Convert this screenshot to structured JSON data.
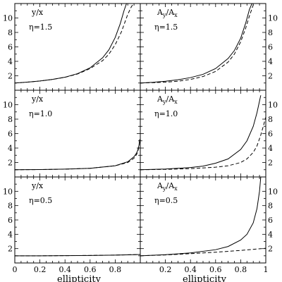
{
  "chart_data": [
    {
      "type": "line",
      "id": "top-left",
      "panel_label": "y/x",
      "eta_label": "η=1.5",
      "xlim": [
        0,
        1
      ],
      "ylim": [
        0,
        12
      ],
      "yticks_shown": [
        "2",
        "4",
        "6",
        "8",
        "10"
      ],
      "xticks_shown": [],
      "xlabel": "",
      "series": [
        {
          "style": "solid",
          "x": [
            0,
            0.1,
            0.2,
            0.3,
            0.4,
            0.5,
            0.6,
            0.7,
            0.75,
            0.8,
            0.84,
            0.87,
            0.89,
            0.9
          ],
          "y": [
            1.0,
            1.12,
            1.28,
            1.5,
            1.8,
            2.3,
            3.1,
            4.5,
            5.6,
            7.3,
            9.2,
            11.0,
            12.0,
            12.0
          ]
        },
        {
          "style": "dashed",
          "x": [
            0,
            0.1,
            0.2,
            0.3,
            0.4,
            0.5,
            0.6,
            0.7,
            0.75,
            0.8,
            0.85,
            0.9,
            0.93,
            0.95
          ],
          "y": [
            1.0,
            1.12,
            1.28,
            1.5,
            1.8,
            2.25,
            3.0,
            4.1,
            5.0,
            6.3,
            8.1,
            10.5,
            11.6,
            12.0
          ]
        }
      ]
    },
    {
      "type": "line",
      "id": "top-right",
      "panel_label": "Ay/Ax",
      "eta_label": "η=1.5",
      "xlim": [
        0,
        1
      ],
      "ylim": [
        0,
        12
      ],
      "yticks_shown": [
        "2",
        "4",
        "6",
        "8",
        "10"
      ],
      "xticks_shown": [],
      "xlabel": "",
      "series": [
        {
          "style": "solid",
          "x": [
            0,
            0.1,
            0.2,
            0.3,
            0.4,
            0.5,
            0.6,
            0.7,
            0.75,
            0.8,
            0.84,
            0.87,
            0.89,
            0.9
          ],
          "y": [
            1.0,
            1.1,
            1.25,
            1.45,
            1.75,
            2.2,
            3.0,
            4.4,
            5.5,
            7.2,
            9.3,
            11.2,
            12.0,
            12.0
          ]
        },
        {
          "style": "dashed",
          "x": [
            0,
            0.1,
            0.2,
            0.3,
            0.4,
            0.5,
            0.6,
            0.7,
            0.75,
            0.8,
            0.84,
            0.87,
            0.9,
            0.92
          ],
          "y": [
            1.0,
            1.05,
            1.12,
            1.25,
            1.5,
            1.9,
            2.6,
            3.9,
            5.0,
            6.7,
            8.6,
            10.3,
            11.8,
            12.0
          ]
        }
      ]
    },
    {
      "type": "line",
      "id": "middle-left",
      "panel_label": "y/x",
      "eta_label": "η=1.0",
      "xlim": [
        0,
        1
      ],
      "ylim": [
        0,
        12
      ],
      "yticks_shown": [
        "2",
        "4",
        "6",
        "8",
        "10"
      ],
      "xticks_shown": [],
      "xlabel": "",
      "series": [
        {
          "style": "solid",
          "x": [
            0,
            0.2,
            0.4,
            0.6,
            0.8,
            0.9,
            0.95,
            0.97,
            0.98,
            0.99,
            0.995
          ],
          "y": [
            1.0,
            1.02,
            1.08,
            1.2,
            1.55,
            2.1,
            2.8,
            3.3,
            3.7,
            4.4,
            5.2
          ]
        },
        {
          "style": "dashed",
          "x": [
            0,
            0.2,
            0.4,
            0.6,
            0.8,
            0.9,
            0.95,
            0.97,
            0.98,
            0.99,
            0.995
          ],
          "y": [
            1.0,
            1.02,
            1.08,
            1.2,
            1.55,
            2.0,
            2.6,
            3.1,
            3.5,
            4.2,
            5.0
          ]
        }
      ]
    },
    {
      "type": "line",
      "id": "middle-right",
      "panel_label": "Ay/Ax",
      "eta_label": "η=1.0",
      "xlim": [
        0,
        1
      ],
      "ylim": [
        0,
        12
      ],
      "yticks_shown": [
        "2",
        "4",
        "6",
        "8",
        "10"
      ],
      "xticks_shown": [],
      "xlabel": "",
      "series": [
        {
          "style": "solid",
          "x": [
            0,
            0.2,
            0.4,
            0.5,
            0.6,
            0.7,
            0.8,
            0.85,
            0.9,
            0.93,
            0.95,
            0.96
          ],
          "y": [
            1.0,
            1.1,
            1.3,
            1.5,
            1.9,
            2.5,
            3.8,
            5.0,
            7.0,
            8.9,
            10.5,
            11.3
          ]
        },
        {
          "style": "dashed",
          "x": [
            0,
            0.2,
            0.4,
            0.6,
            0.7,
            0.8,
            0.85,
            0.9,
            0.93,
            0.96,
            0.98,
            1.0
          ],
          "y": [
            1.0,
            1.05,
            1.15,
            1.35,
            1.55,
            2.0,
            2.5,
            3.4,
            4.3,
            5.8,
            7.0,
            8.3
          ]
        }
      ]
    },
    {
      "type": "line",
      "id": "bottom-left",
      "panel_label": "y/x",
      "eta_label": "η=0.5",
      "xlim": [
        0,
        1
      ],
      "ylim": [
        0,
        12
      ],
      "yticks_shown": [
        "2",
        "4",
        "6",
        "8",
        "10"
      ],
      "xticks_shown": [
        "0",
        "0.2",
        "0.4",
        "0.6",
        "0.8"
      ],
      "xlabel": "ellipticity",
      "series": [
        {
          "style": "solid",
          "x": [
            0,
            0.2,
            0.4,
            0.6,
            0.8,
            1.0
          ],
          "y": [
            1.0,
            1.0,
            1.02,
            1.05,
            1.1,
            1.18
          ]
        },
        {
          "style": "dashed",
          "x": [
            0,
            0.2,
            0.4,
            0.6,
            0.8,
            1.0
          ],
          "y": [
            1.0,
            1.0,
            1.02,
            1.05,
            1.1,
            1.18
          ]
        }
      ]
    },
    {
      "type": "line",
      "id": "bottom-right",
      "panel_label": "Ay/Ax",
      "eta_label": "η=0.5",
      "xlim": [
        0,
        1
      ],
      "ylim": [
        0,
        12
      ],
      "yticks_shown": [
        "2",
        "4",
        "6",
        "8",
        "10"
      ],
      "xticks_shown": [
        "0.2",
        "0.4",
        "0.6",
        "0.8",
        "1"
      ],
      "xlabel": "ellipticity",
      "series": [
        {
          "style": "solid",
          "x": [
            0,
            0.2,
            0.4,
            0.6,
            0.7,
            0.8,
            0.85,
            0.9,
            0.93,
            0.95,
            0.96
          ],
          "y": [
            1.0,
            1.15,
            1.4,
            1.85,
            2.3,
            3.2,
            4.0,
            5.6,
            7.6,
            10.0,
            12.0
          ]
        },
        {
          "style": "dashed",
          "x": [
            0,
            0.2,
            0.4,
            0.6,
            0.8,
            1.0
          ],
          "y": [
            1.0,
            1.12,
            1.3,
            1.5,
            1.75,
            2.05
          ]
        }
      ]
    }
  ]
}
